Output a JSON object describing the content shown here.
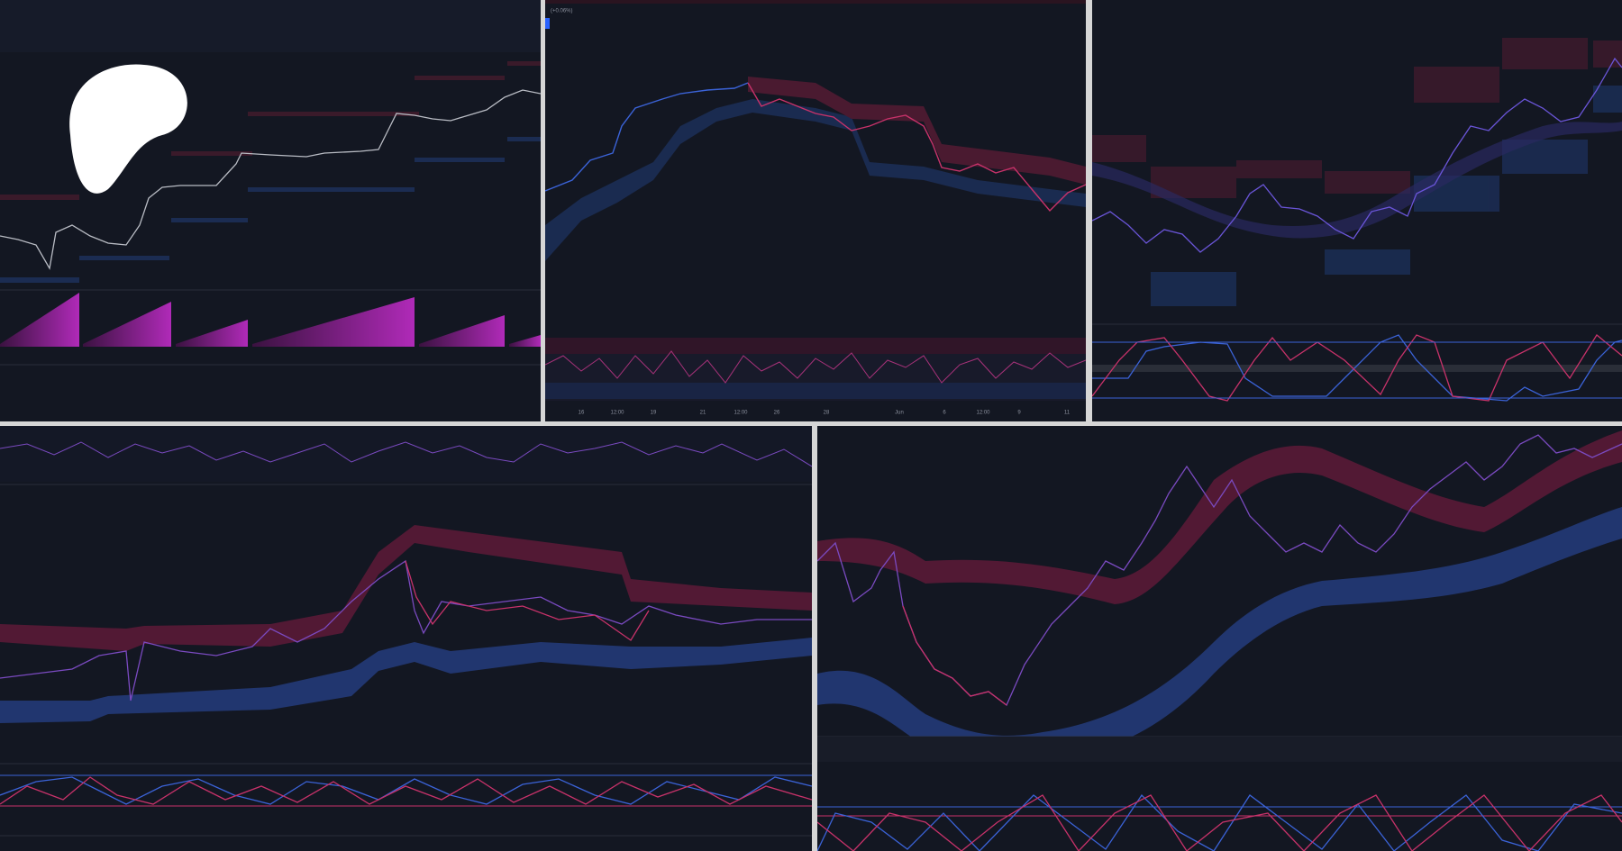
{
  "header": {
    "change": "(+0.06%)"
  },
  "panel2_axis": [
    "16",
    "12:00",
    "19",
    "21",
    "12:00",
    "26",
    "28",
    "Jun",
    "6",
    "12:00",
    "9",
    "11"
  ]
}
